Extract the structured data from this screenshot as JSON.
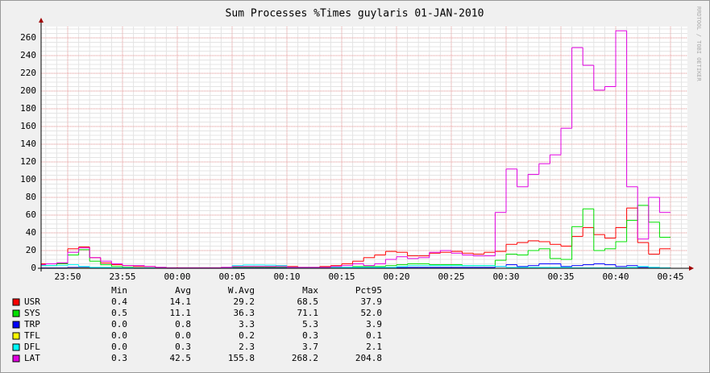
{
  "chart_data": {
    "type": "step-line",
    "title": "Sum Processes %Times guylaris 01-JAN-2010",
    "watermark": "RRDTOOL / TOBI OETIKER",
    "x": [
      "23:47",
      "23:48",
      "23:49",
      "23:50",
      "23:51",
      "23:52",
      "23:53",
      "23:54",
      "23:55",
      "23:56",
      "23:57",
      "23:58",
      "23:59",
      "00:00",
      "00:01",
      "00:02",
      "00:03",
      "00:04",
      "00:05",
      "00:06",
      "00:07",
      "00:08",
      "00:09",
      "00:10",
      "00:11",
      "00:12",
      "00:13",
      "00:14",
      "00:15",
      "00:16",
      "00:17",
      "00:18",
      "00:19",
      "00:20",
      "00:21",
      "00:22",
      "00:23",
      "00:24",
      "00:25",
      "00:26",
      "00:27",
      "00:28",
      "00:29",
      "00:30",
      "00:31",
      "00:32",
      "00:33",
      "00:34",
      "00:35",
      "00:36",
      "00:37",
      "00:38",
      "00:39",
      "00:40",
      "00:41",
      "00:42",
      "00:43",
      "00:44"
    ],
    "xlim": [
      "23:47",
      "00:47"
    ],
    "xticks": [
      "23:50",
      "23:55",
      "00:00",
      "00:05",
      "00:10",
      "00:15",
      "00:20",
      "00:25",
      "00:30",
      "00:35",
      "00:40",
      "00:45"
    ],
    "ylim": [
      0,
      270
    ],
    "yticks": [
      0,
      20,
      40,
      60,
      80,
      100,
      120,
      140,
      160,
      180,
      200,
      220,
      240,
      260
    ],
    "grid": true,
    "stat_headers": [
      "Min",
      "Avg",
      "W.Avg",
      "Max",
      "Pct95"
    ],
    "series": [
      {
        "name": "USR",
        "color": "#ff0000",
        "stats": [
          "0.4",
          "14.1",
          "29.2",
          "68.5",
          "37.9"
        ],
        "values": [
          5,
          5,
          6,
          22,
          24,
          12,
          6,
          4,
          3,
          2,
          2,
          1,
          0.5,
          0.5,
          0.5,
          0.5,
          0.5,
          1,
          2,
          2,
          2,
          2,
          3,
          2,
          1,
          1,
          2,
          3,
          5,
          8,
          12,
          15,
          19,
          18,
          14,
          14,
          17,
          18,
          19,
          17,
          16,
          18,
          19,
          27,
          29,
          31,
          30,
          27,
          25,
          36,
          46,
          38,
          34,
          46,
          68,
          29,
          16,
          22
        ]
      },
      {
        "name": "SYS",
        "color": "#00e000",
        "stats": [
          "0.5",
          "11.1",
          "36.3",
          "71.1",
          "52.0"
        ],
        "values": [
          3,
          3,
          5,
          15,
          21,
          8,
          4,
          2,
          1,
          0.5,
          0.5,
          0.5,
          0.5,
          0.5,
          0.5,
          0.5,
          0.5,
          0.5,
          1,
          1,
          1,
          1,
          1,
          1,
          1,
          1,
          1,
          1,
          1,
          2,
          2,
          2,
          3,
          4,
          5,
          5,
          4,
          4,
          4,
          3,
          3,
          3,
          9,
          16,
          15,
          20,
          22,
          11,
          10,
          47,
          67,
          20,
          22,
          30,
          54,
          71,
          52,
          35
        ]
      },
      {
        "name": "TRP",
        "color": "#0000ff",
        "stats": [
          "0.0",
          "0.8",
          "3.3",
          "5.3",
          "3.9"
        ],
        "values": [
          0.5,
          0.5,
          0.5,
          1,
          1,
          0.5,
          0.5,
          0.3,
          0.3,
          0.2,
          0.2,
          0.1,
          0.1,
          0,
          0,
          0,
          0,
          0.1,
          0.3,
          0.3,
          0.3,
          0.3,
          0.3,
          0.2,
          0.2,
          0.2,
          0.3,
          0.3,
          0.5,
          0.5,
          0.5,
          0.5,
          0.5,
          0.8,
          1,
          1,
          1,
          1,
          1,
          1,
          1,
          1,
          2,
          4,
          2,
          3,
          5,
          5,
          2,
          3,
          4,
          5,
          4,
          2,
          3,
          1,
          1,
          0.5
        ]
      },
      {
        "name": "TFL",
        "color": "#ffff00",
        "stats": [
          "0.0",
          "0.0",
          "0.2",
          "0.3",
          "0.1"
        ],
        "values": [
          0.1,
          0.1,
          0.1,
          0.2,
          0.3,
          0.1,
          0.1,
          0,
          0,
          0,
          0,
          0,
          0,
          0,
          0,
          0,
          0,
          0,
          0,
          0,
          0,
          0,
          0,
          0,
          0,
          0,
          0,
          0,
          0,
          0,
          0,
          0,
          0,
          0,
          0,
          0,
          0,
          0,
          0,
          0,
          0,
          0,
          0,
          0,
          0,
          0,
          0,
          0,
          0,
          0.1,
          0.1,
          0.1,
          0,
          0,
          0.1,
          0.1,
          0,
          0
        ]
      },
      {
        "name": "DFL",
        "color": "#00ffff",
        "stats": [
          "0.0",
          "0.3",
          "2.3",
          "3.7",
          "2.1"
        ],
        "values": [
          3,
          3,
          3,
          4,
          2,
          1,
          1,
          0.5,
          0.5,
          0.3,
          0.3,
          0.2,
          0.2,
          0.1,
          0.1,
          0.1,
          0.1,
          0.5,
          3,
          3.7,
          3.7,
          3.5,
          3,
          1,
          0.5,
          0.5,
          0.5,
          1,
          1,
          1,
          1,
          1,
          1,
          2,
          3,
          3,
          3,
          3,
          3,
          3,
          3,
          3,
          2,
          1,
          1,
          1,
          1,
          1,
          1,
          0.5,
          0.5,
          0.5,
          0.5,
          0.5,
          1,
          2,
          1,
          0.5
        ]
      },
      {
        "name": "LAT",
        "color": "#e000e0",
        "stats": [
          "0.3",
          "42.5",
          "155.8",
          "268.2",
          "204.8"
        ],
        "values": [
          4,
          5,
          6,
          18,
          23,
          12,
          8,
          5,
          3,
          3,
          2,
          1,
          0.5,
          0.5,
          0.5,
          0.5,
          0.5,
          1,
          2,
          2,
          2,
          2,
          2,
          1,
          1,
          1,
          1,
          2,
          3,
          5,
          3,
          5,
          10,
          13,
          11,
          12,
          18,
          20,
          17,
          15,
          14,
          14,
          63,
          112,
          92,
          106,
          118,
          128,
          158,
          249,
          229,
          201,
          205,
          268,
          92,
          33,
          80,
          63
        ]
      }
    ]
  }
}
